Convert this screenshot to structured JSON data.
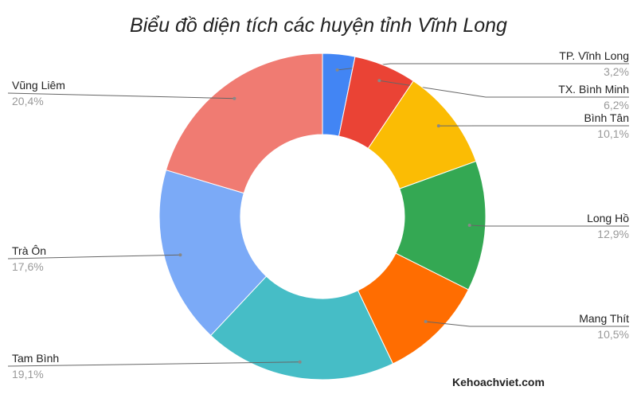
{
  "chart_data": {
    "type": "pie",
    "donut": true,
    "title": "Biểu đồ diện tích các huyện tỉnh Vĩnh Long",
    "categories": [
      "TP. Vĩnh Long",
      "TX. Bình Minh",
      "Bình Tân",
      "Long Hồ",
      "Mang Thít",
      "Tam Bình",
      "Trà Ôn",
      "Vũng Liêm"
    ],
    "values": [
      3.2,
      6.2,
      10.1,
      12.9,
      10.5,
      19.1,
      17.6,
      20.4
    ],
    "value_labels": [
      "3,2%",
      "6,2%",
      "10,1%",
      "12,9%",
      "10,5%",
      "19,1%",
      "17,6%",
      "20,4%"
    ],
    "colors": [
      "#4285f4",
      "#ea4335",
      "#fbbc04",
      "#34a853",
      "#ff6d01",
      "#46bdc6",
      "#7baaf7",
      "#f07b72"
    ],
    "legend": "labels with leader lines"
  },
  "watermark": "Kehoachviet.com"
}
